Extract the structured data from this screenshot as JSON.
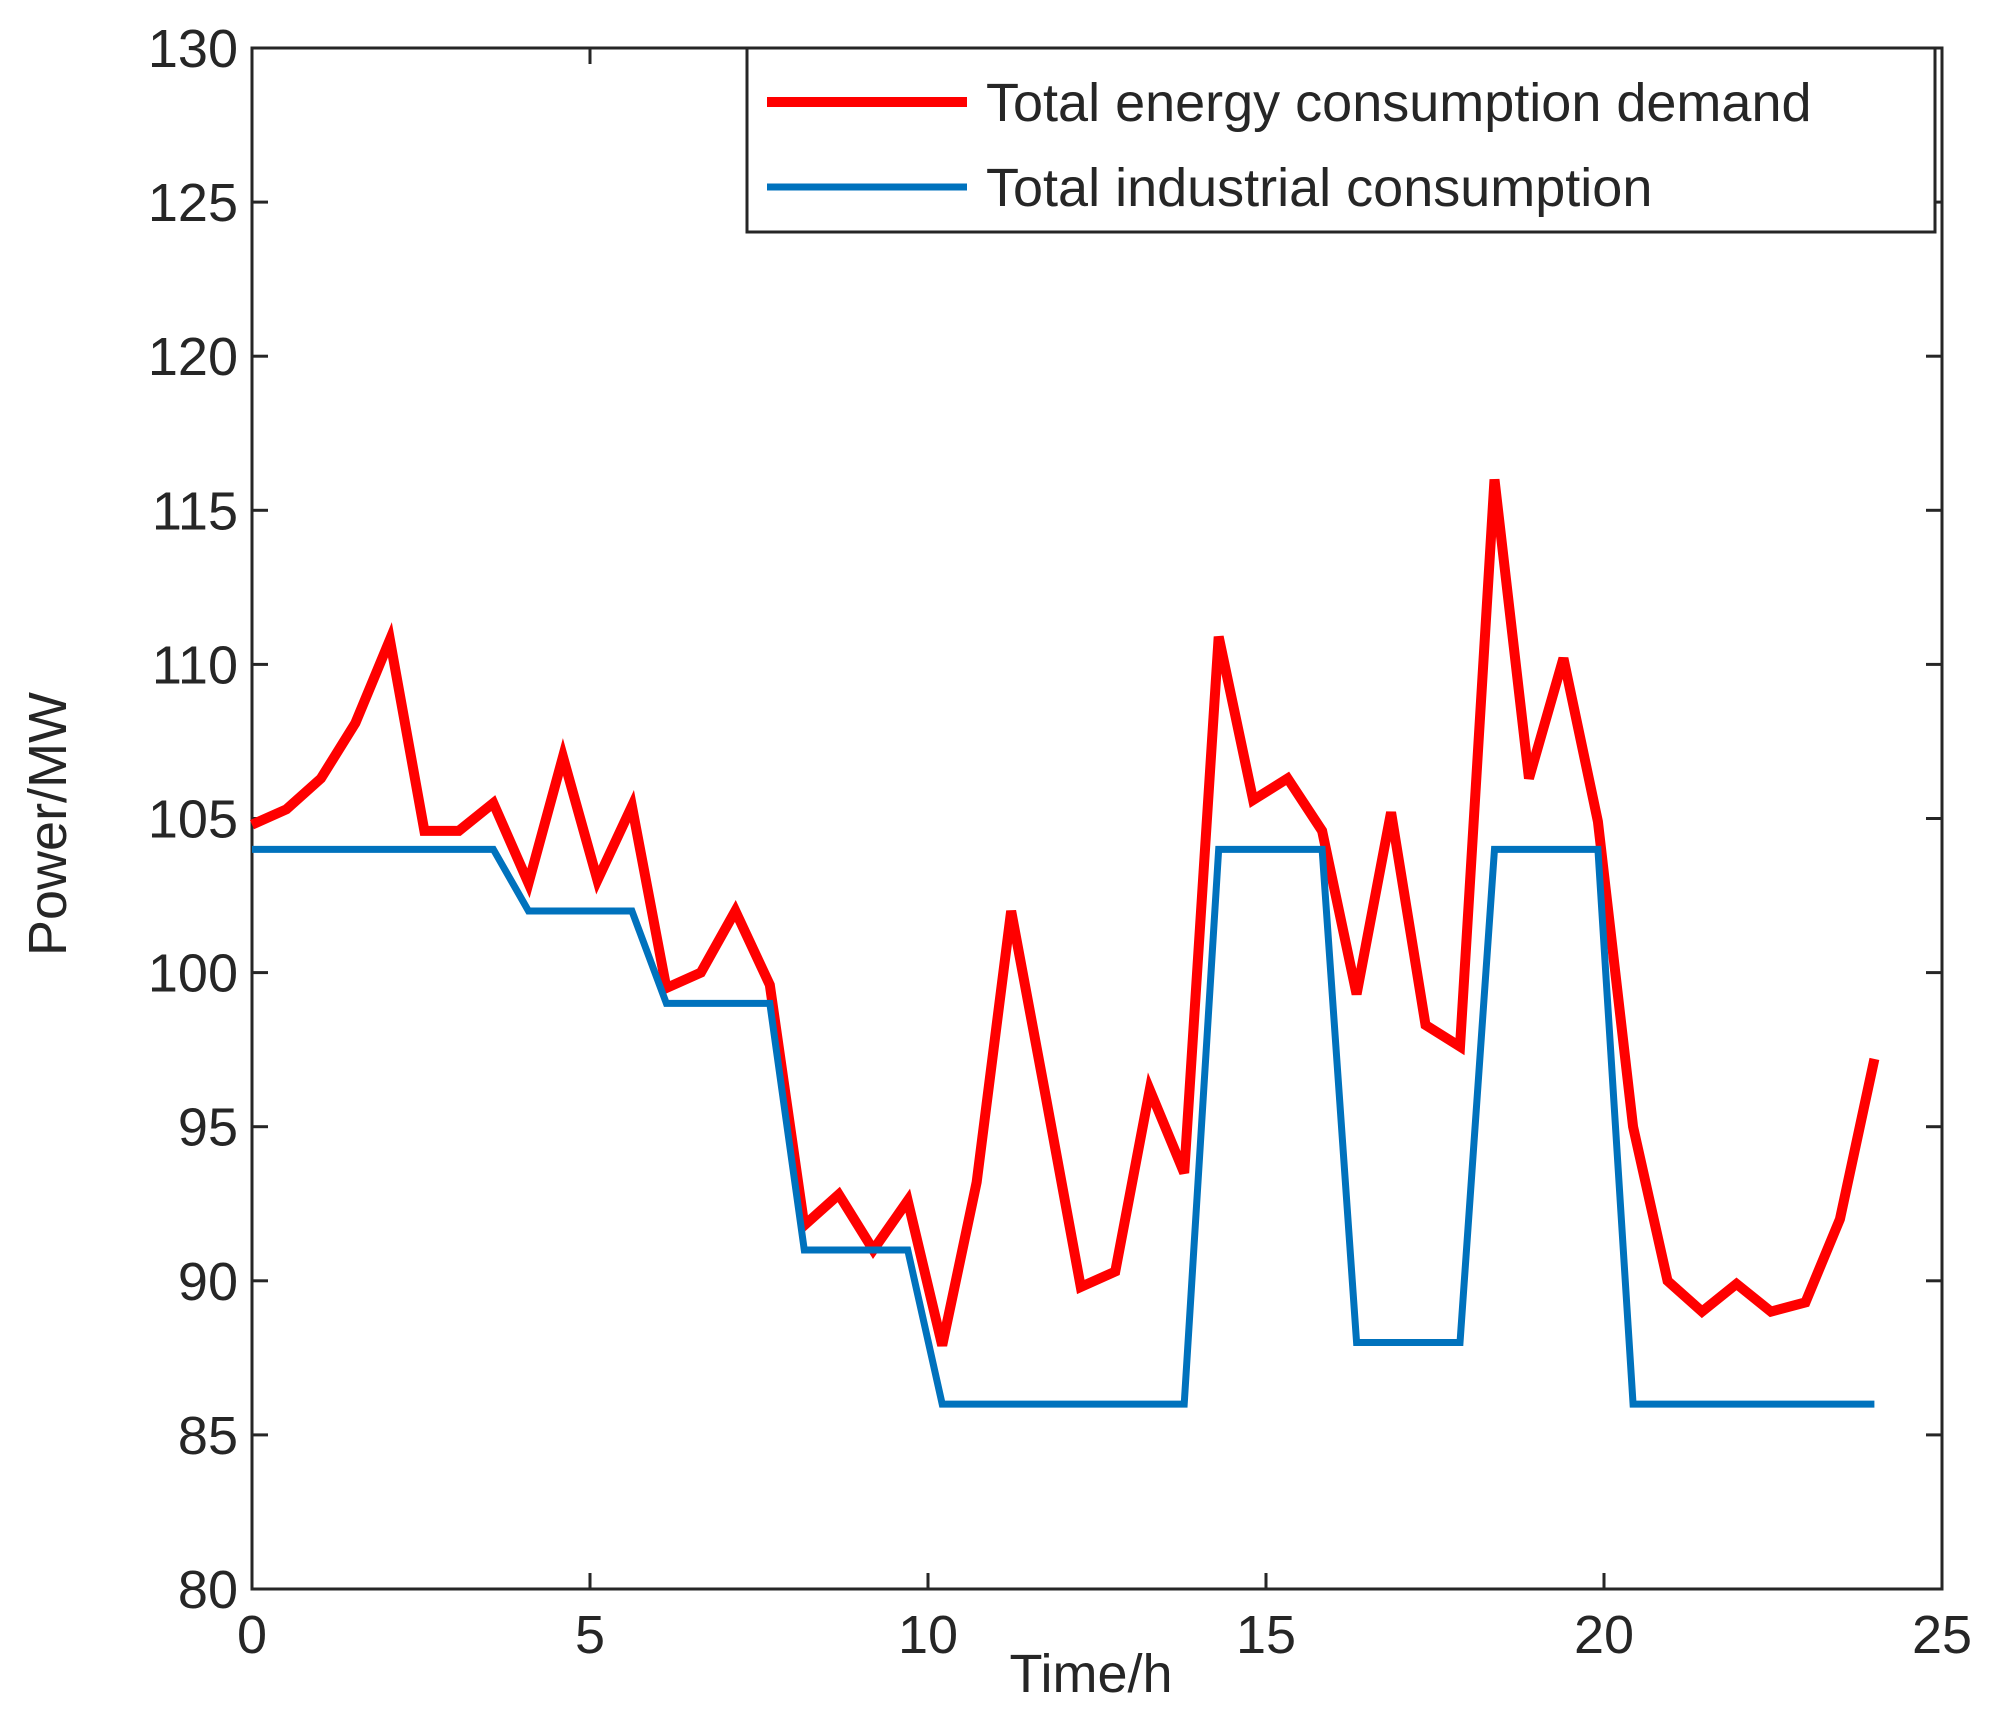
{
  "chart_data": {
    "type": "line",
    "xlabel": "Time/h",
    "ylabel": "Power/MW",
    "x": [
      0,
      0.51,
      1.02,
      1.53,
      2.04,
      2.55,
      3.06,
      3.57,
      4.09,
      4.6,
      5.11,
      5.62,
      6.13,
      6.64,
      7.15,
      7.66,
      8.17,
      8.68,
      9.19,
      9.7,
      10.21,
      10.72,
      11.23,
      11.74,
      12.26,
      12.77,
      13.28,
      13.79,
      14.3,
      14.81,
      15.32,
      15.83,
      16.34,
      16.85,
      17.36,
      17.87,
      18.38,
      18.89,
      19.4,
      19.91,
      20.43,
      20.94,
      21.45,
      21.96,
      22.47,
      22.98,
      23.49,
      24
    ],
    "series": [
      {
        "name": "Total energy consumption demand",
        "color": "#ff0000",
        "values": [
          104.8,
          105.3,
          106.3,
          108.1,
          110.8,
          104.6,
          104.6,
          105.5,
          102.9,
          107,
          103,
          105.4,
          99.5,
          100,
          102,
          99.6,
          91.8,
          92.8,
          91,
          92.6,
          87.9,
          93.2,
          102,
          96,
          89.8,
          90.3,
          96.2,
          93.5,
          110.9,
          105.6,
          106.3,
          104.6,
          99.3,
          105.2,
          98.3,
          97.6,
          116,
          106.3,
          110.2,
          104.9,
          95,
          90,
          89,
          89.9,
          89,
          89.3,
          92,
          97.2
        ]
      },
      {
        "name": "Total industrial consumption",
        "color": "#0072bd",
        "values": [
          104,
          104,
          104,
          104,
          104,
          104,
          104,
          104,
          102,
          102,
          102,
          102,
          99,
          99,
          99,
          99,
          91,
          91,
          91,
          91,
          86,
          86,
          86,
          86,
          86,
          86,
          86,
          86,
          104,
          104,
          104,
          104,
          88,
          88,
          88,
          88,
          104,
          104,
          104,
          104,
          86,
          86,
          86,
          86,
          86,
          86,
          86,
          86
        ]
      }
    ],
    "xlim": [
      0,
      25
    ],
    "xticks": [
      0,
      5,
      10,
      15,
      20,
      25
    ],
    "ylim": [
      80,
      130
    ],
    "yticks": [
      80,
      85,
      90,
      95,
      100,
      105,
      110,
      115,
      120,
      125,
      130
    ],
    "legend": "upper right"
  }
}
